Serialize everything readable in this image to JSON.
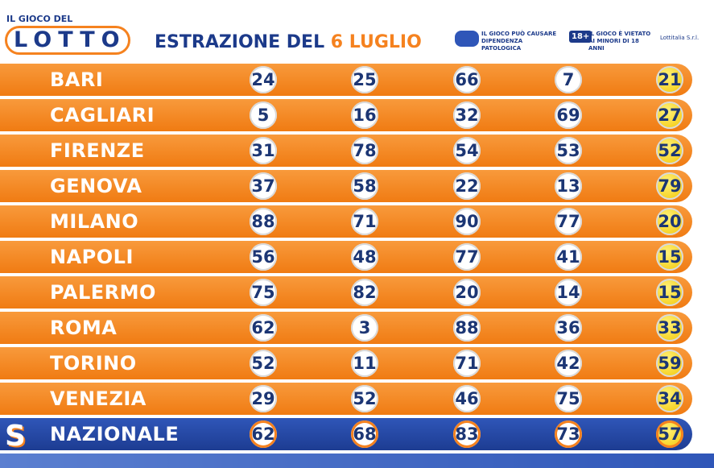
{
  "header": {
    "logo_top": "IL GIOCO DEL",
    "logo_word": "LOTTO",
    "title": "ESTRAZIONE DEL",
    "date": "6 LUGLIO",
    "warning_1": "IL GIOCO PUÒ CAUSARE DIPENDENZA PATOLOGICA",
    "age_badge": "18+",
    "warning_2": "IL GIOCO È VIETATO AI MINORI DI 18 ANNI",
    "company": "Lottitalia S.r.l."
  },
  "table": {
    "rows": [
      [
        "BARI",
        24,
        25,
        66,
        7,
        21
      ],
      [
        "CAGLIARI",
        5,
        16,
        32,
        69,
        27
      ],
      [
        "FIRENZE",
        31,
        78,
        54,
        53,
        52
      ],
      [
        "GENOVA",
        37,
        58,
        22,
        13,
        79
      ],
      [
        "MILANO",
        88,
        71,
        90,
        77,
        20
      ],
      [
        "NAPOLI",
        56,
        48,
        77,
        41,
        15
      ],
      [
        "PALERMO",
        75,
        82,
        20,
        14,
        15
      ],
      [
        "ROMA",
        62,
        3,
        88,
        36,
        33
      ],
      [
        "TORINO",
        52,
        11,
        71,
        42,
        59
      ],
      [
        "VENEZIA",
        29,
        52,
        46,
        75,
        34
      ],
      [
        "NAZIONALE",
        62,
        68,
        83,
        73,
        57
      ]
    ]
  }
}
